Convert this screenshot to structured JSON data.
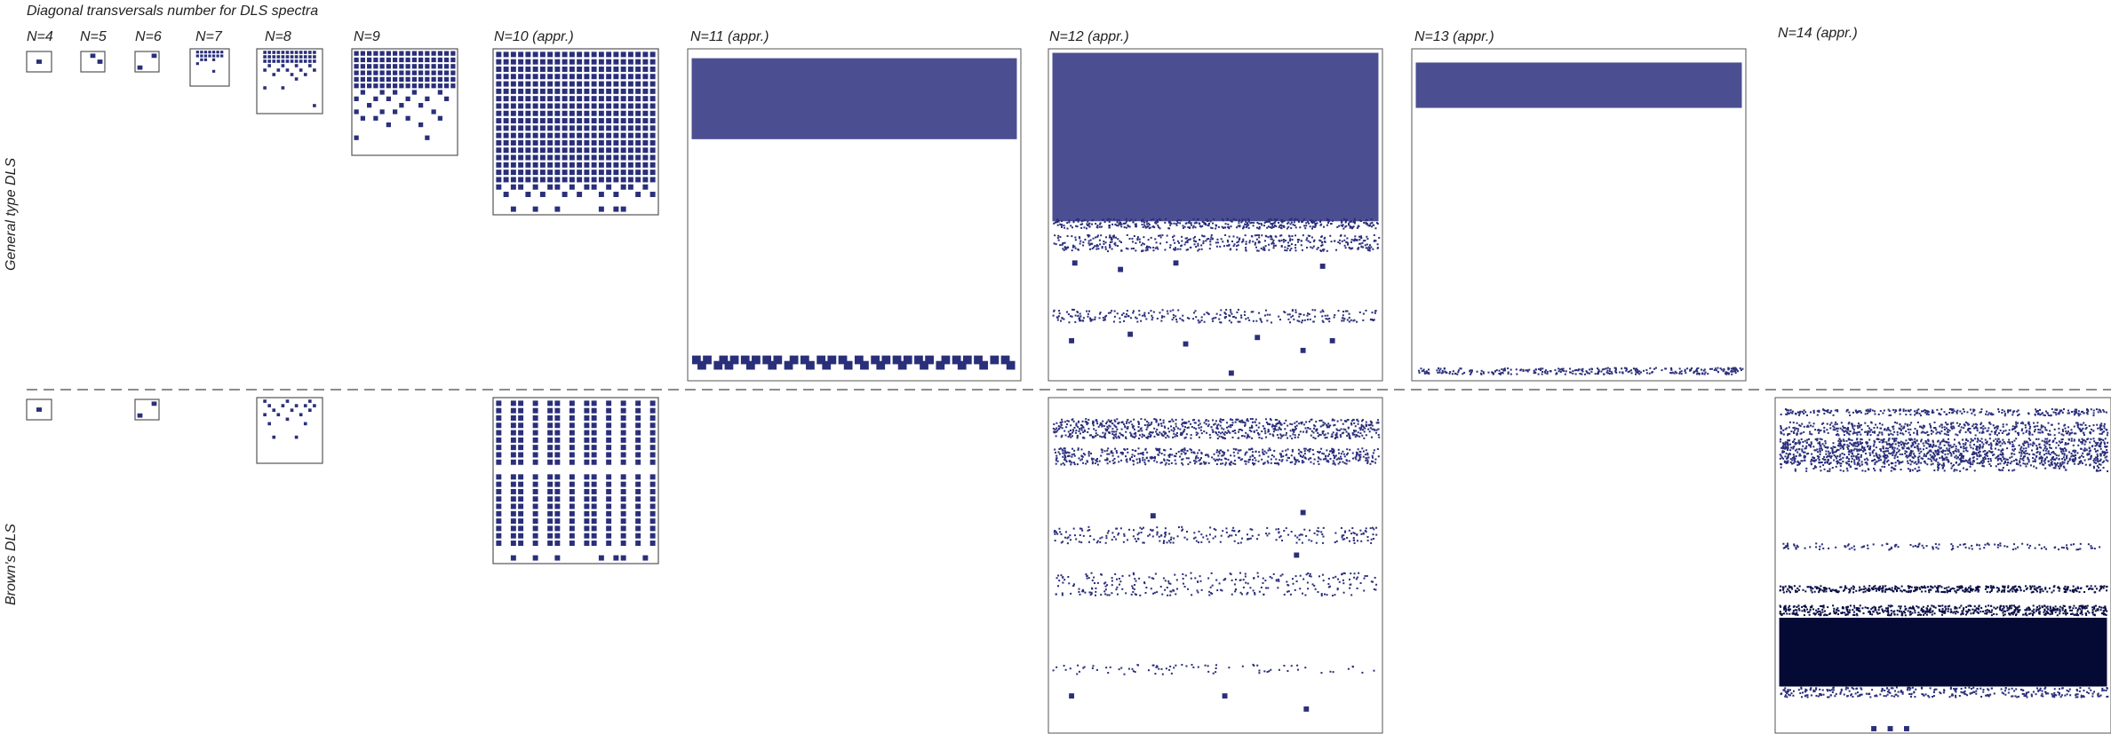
{
  "chart_data": {
    "type": "scatter",
    "title": "Diagonal transversals number for DLS spectra",
    "colors": {
      "point": "#2a2f7a",
      "dense_point": "#4b4f92",
      "frame": "#555555",
      "separator": "#666666"
    },
    "row_labels": [
      "General type DLS",
      "Brown's DLS"
    ],
    "column_labels": [
      "N=4",
      "N=5",
      "N=6",
      "N=7",
      "N=8",
      "N=9",
      "N=10 (appr.)",
      "N=11 (appr.)",
      "N=12 (appr.)",
      "N=13 (appr.)",
      "N=14 (appr.)"
    ],
    "panels": [
      {
        "row": "General type DLS",
        "column": "N=4",
        "grid": {
          "cols": 3,
          "rows": 3
        },
        "cells": [
          {
            "c": 1,
            "r": 1
          }
        ]
      },
      {
        "row": "General type DLS",
        "column": "N=5",
        "grid": {
          "cols": 3,
          "rows": 3
        },
        "cells": [
          {
            "c": 1,
            "r": 0
          },
          {
            "c": 2,
            "r": 1
          }
        ]
      },
      {
        "row": "General type DLS",
        "column": "N=6",
        "grid": {
          "cols": 3,
          "rows": 3
        },
        "cells": [
          {
            "c": 2,
            "r": 0
          },
          {
            "c": 0,
            "r": 2
          }
        ]
      },
      {
        "row": "General type DLS",
        "column": "N=7",
        "grid": {
          "cols": 9,
          "rows": 9
        },
        "cells": [
          {
            "c": 1,
            "r": 0
          },
          {
            "c": 2,
            "r": 0
          },
          {
            "c": 3,
            "r": 0
          },
          {
            "c": 4,
            "r": 0
          },
          {
            "c": 5,
            "r": 0
          },
          {
            "c": 6,
            "r": 0
          },
          {
            "c": 7,
            "r": 0
          },
          {
            "c": 1,
            "r": 1
          },
          {
            "c": 2,
            "r": 1
          },
          {
            "c": 3,
            "r": 1
          },
          {
            "c": 4,
            "r": 1
          },
          {
            "c": 5,
            "r": 1
          },
          {
            "c": 6,
            "r": 1
          },
          {
            "c": 7,
            "r": 1
          },
          {
            "c": 2,
            "r": 2
          },
          {
            "c": 3,
            "r": 2
          },
          {
            "c": 5,
            "r": 2
          },
          {
            "c": 1,
            "r": 3
          },
          {
            "c": 5,
            "r": 5
          }
        ]
      },
      {
        "row": "General type DLS",
        "column": "N=8",
        "grid": {
          "cols": 14,
          "rows": 14
        },
        "fill": {
          "cols": [
            1,
            12
          ],
          "rows": [
            0,
            2
          ]
        },
        "cells": [
          {
            "c": 2,
            "r": 3
          },
          {
            "c": 5,
            "r": 3
          },
          {
            "c": 8,
            "r": 3
          },
          {
            "c": 11,
            "r": 3
          },
          {
            "c": 1,
            "r": 4
          },
          {
            "c": 4,
            "r": 4
          },
          {
            "c": 6,
            "r": 4
          },
          {
            "c": 9,
            "r": 4
          },
          {
            "c": 12,
            "r": 4
          },
          {
            "c": 3,
            "r": 5
          },
          {
            "c": 7,
            "r": 5
          },
          {
            "c": 10,
            "r": 5
          },
          {
            "c": 8,
            "r": 6
          },
          {
            "c": 1,
            "r": 8
          },
          {
            "c": 5,
            "r": 8
          },
          {
            "c": 12,
            "r": 12
          }
        ]
      },
      {
        "row": "General type DLS",
        "column": "N=9",
        "grid": {
          "cols": 16,
          "rows": 16
        },
        "fill": {
          "cols": [
            0,
            15
          ],
          "rows": [
            0,
            5
          ]
        },
        "cells": [
          {
            "c": 1,
            "r": 6
          },
          {
            "c": 4,
            "r": 6
          },
          {
            "c": 6,
            "r": 6
          },
          {
            "c": 9,
            "r": 6
          },
          {
            "c": 13,
            "r": 6
          },
          {
            "c": 0,
            "r": 7
          },
          {
            "c": 3,
            "r": 7
          },
          {
            "c": 5,
            "r": 7
          },
          {
            "c": 8,
            "r": 7
          },
          {
            "c": 11,
            "r": 7
          },
          {
            "c": 14,
            "r": 7
          },
          {
            "c": 2,
            "r": 8
          },
          {
            "c": 7,
            "r": 8
          },
          {
            "c": 10,
            "r": 8
          },
          {
            "c": 0,
            "r": 9
          },
          {
            "c": 4,
            "r": 9
          },
          {
            "c": 6,
            "r": 9
          },
          {
            "c": 12,
            "r": 9
          },
          {
            "c": 1,
            "r": 10
          },
          {
            "c": 3,
            "r": 10
          },
          {
            "c": 8,
            "r": 10
          },
          {
            "c": 13,
            "r": 10
          },
          {
            "c": 5,
            "r": 11
          },
          {
            "c": 10,
            "r": 11
          },
          {
            "c": 0,
            "r": 13
          },
          {
            "c": 11,
            "r": 13
          }
        ]
      },
      {
        "row": "General type DLS",
        "column": "N=10 (appr.)",
        "grid": {
          "cols": 22,
          "rows": 22
        },
        "fill": {
          "cols": [
            0,
            21
          ],
          "rows": [
            0,
            17
          ]
        },
        "cells": [
          {
            "c": 0,
            "r": 18
          },
          {
            "c": 2,
            "r": 18
          },
          {
            "c": 3,
            "r": 18
          },
          {
            "c": 5,
            "r": 18
          },
          {
            "c": 7,
            "r": 18
          },
          {
            "c": 8,
            "r": 18
          },
          {
            "c": 10,
            "r": 18
          },
          {
            "c": 12,
            "r": 18
          },
          {
            "c": 13,
            "r": 18
          },
          {
            "c": 15,
            "r": 18
          },
          {
            "c": 17,
            "r": 18
          },
          {
            "c": 18,
            "r": 18
          },
          {
            "c": 20,
            "r": 18
          },
          {
            "c": 1,
            "r": 19
          },
          {
            "c": 4,
            "r": 19
          },
          {
            "c": 6,
            "r": 19
          },
          {
            "c": 9,
            "r": 19
          },
          {
            "c": 11,
            "r": 19
          },
          {
            "c": 14,
            "r": 19
          },
          {
            "c": 16,
            "r": 19
          },
          {
            "c": 19,
            "r": 19
          },
          {
            "c": 21,
            "r": 19
          },
          {
            "c": 2,
            "r": 21
          },
          {
            "c": 5,
            "r": 21
          },
          {
            "c": 8,
            "r": 21
          },
          {
            "c": 14,
            "r": 21
          },
          {
            "c": 16,
            "r": 21
          },
          {
            "c": 17,
            "r": 21
          }
        ]
      },
      {
        "row": "General type DLS",
        "column": "N=11 (appr.)",
        "grid": {
          "cols": 60,
          "rows": 60
        },
        "fill": {
          "cols": [
            0,
            59
          ],
          "rows": [
            1,
            15
          ]
        },
        "cells": [
          {
            "c": 0,
            "r": 56
          },
          {
            "c": 2,
            "r": 56
          },
          {
            "c": 5,
            "r": 56
          },
          {
            "c": 7,
            "r": 56
          },
          {
            "c": 9,
            "r": 56
          },
          {
            "c": 11,
            "r": 56
          },
          {
            "c": 13,
            "r": 56
          },
          {
            "c": 15,
            "r": 56
          },
          {
            "c": 18,
            "r": 56
          },
          {
            "c": 20,
            "r": 56
          },
          {
            "c": 23,
            "r": 56
          },
          {
            "c": 25,
            "r": 56
          },
          {
            "c": 27,
            "r": 56
          },
          {
            "c": 30,
            "r": 56
          },
          {
            "c": 33,
            "r": 56
          },
          {
            "c": 35,
            "r": 56
          },
          {
            "c": 37,
            "r": 56
          },
          {
            "c": 39,
            "r": 56
          },
          {
            "c": 41,
            "r": 56
          },
          {
            "c": 43,
            "r": 56
          },
          {
            "c": 46,
            "r": 56
          },
          {
            "c": 48,
            "r": 56
          },
          {
            "c": 50,
            "r": 56
          },
          {
            "c": 52,
            "r": 56
          },
          {
            "c": 55,
            "r": 56
          },
          {
            "c": 57,
            "r": 56
          },
          {
            "c": 1,
            "r": 57
          },
          {
            "c": 4,
            "r": 57
          },
          {
            "c": 6,
            "r": 57
          },
          {
            "c": 10,
            "r": 57
          },
          {
            "c": 14,
            "r": 57
          },
          {
            "c": 17,
            "r": 57
          },
          {
            "c": 21,
            "r": 57
          },
          {
            "c": 24,
            "r": 57
          },
          {
            "c": 28,
            "r": 57
          },
          {
            "c": 31,
            "r": 57
          },
          {
            "c": 34,
            "r": 57
          },
          {
            "c": 38,
            "r": 57
          },
          {
            "c": 42,
            "r": 57
          },
          {
            "c": 45,
            "r": 57
          },
          {
            "c": 49,
            "r": 57
          },
          {
            "c": 53,
            "r": 57
          },
          {
            "c": 58,
            "r": 57
          }
        ]
      },
      {
        "row": "General type DLS",
        "column": "N=12 (appr.)",
        "grid": {
          "cols": 100,
          "rows": 100
        },
        "fill": {
          "cols": [
            0,
            99
          ],
          "rows": [
            0,
            51
          ]
        },
        "bands": [
          {
            "rows": [
              51,
              53
            ],
            "density": 0.65
          },
          {
            "rows": [
              56,
              60
            ],
            "density": 0.4
          },
          {
            "rows": [
              79,
              82
            ],
            "density": 0.3
          }
        ],
        "cells": [
          {
            "c": 6,
            "r": 64
          },
          {
            "c": 20,
            "r": 66
          },
          {
            "c": 37,
            "r": 64
          },
          {
            "c": 82,
            "r": 65
          },
          {
            "c": 5,
            "r": 88
          },
          {
            "c": 23,
            "r": 86
          },
          {
            "c": 40,
            "r": 89
          },
          {
            "c": 62,
            "r": 87
          },
          {
            "c": 76,
            "r": 91
          },
          {
            "c": 85,
            "r": 88
          },
          {
            "c": 54,
            "r": 98
          }
        ]
      },
      {
        "row": "General type DLS",
        "column": "N=13 (appr.)",
        "grid": {
          "cols": 100,
          "rows": 100
        },
        "fill": {
          "cols": [
            0,
            99
          ],
          "rows": [
            3,
            16
          ]
        },
        "bands": [
          {
            "rows": [
              97,
              98
            ],
            "density": 0.7
          }
        ]
      },
      {
        "row": "Brown's DLS",
        "column": "N=4",
        "grid": {
          "cols": 3,
          "rows": 3
        },
        "cells": [
          {
            "c": 1,
            "r": 1
          }
        ]
      },
      {
        "row": "Brown's DLS",
        "column": "N=6",
        "grid": {
          "cols": 3,
          "rows": 3
        },
        "cells": [
          {
            "c": 2,
            "r": 0
          },
          {
            "c": 0,
            "r": 2
          }
        ]
      },
      {
        "row": "Brown's DLS",
        "column": "N=8",
        "grid": {
          "cols": 14,
          "rows": 14
        },
        "cells": [
          {
            "c": 1,
            "r": 0
          },
          {
            "c": 6,
            "r": 0
          },
          {
            "c": 11,
            "r": 0
          },
          {
            "c": 2,
            "r": 1
          },
          {
            "c": 5,
            "r": 1
          },
          {
            "c": 8,
            "r": 1
          },
          {
            "c": 10,
            "r": 1
          },
          {
            "c": 12,
            "r": 1
          },
          {
            "c": 3,
            "r": 2
          },
          {
            "c": 7,
            "r": 2
          },
          {
            "c": 11,
            "r": 2
          },
          {
            "c": 1,
            "r": 3
          },
          {
            "c": 4,
            "r": 3
          },
          {
            "c": 9,
            "r": 3
          },
          {
            "c": 6,
            "r": 4
          },
          {
            "c": 2,
            "r": 5
          },
          {
            "c": 10,
            "r": 5
          },
          {
            "c": 3,
            "r": 8
          },
          {
            "c": 8,
            "r": 8
          }
        ]
      },
      {
        "row": "Brown's DLS",
        "column": "N=10 (appr.)",
        "grid": {
          "cols": 22,
          "rows": 22
        },
        "columns_filled": [
          0,
          2,
          3,
          5,
          7,
          8,
          10,
          12,
          13,
          15,
          17,
          19,
          21
        ],
        "column_rows": [
          [
            0,
            8
          ],
          [
            10,
            19
          ]
        ],
        "cells": [
          {
            "c": 2,
            "r": 21
          },
          {
            "c": 5,
            "r": 21
          },
          {
            "c": 8,
            "r": 21
          },
          {
            "c": 14,
            "r": 21
          },
          {
            "c": 16,
            "r": 21
          },
          {
            "c": 17,
            "r": 21
          },
          {
            "c": 20,
            "r": 21
          }
        ]
      },
      {
        "row": "Brown's DLS",
        "column": "N=12 (appr.)",
        "grid": {
          "cols": 100,
          "rows": 100
        },
        "bands": [
          {
            "rows": [
              5,
              10
            ],
            "density": 0.55
          },
          {
            "rows": [
              14,
              18
            ],
            "density": 0.5
          },
          {
            "rows": [
              38,
              42
            ],
            "density": 0.22
          },
          {
            "rows": [
              52,
              58
            ],
            "density": 0.18
          },
          {
            "rows": [
              80,
              82
            ],
            "density": 0.12
          }
        ],
        "cells": [
          {
            "c": 30,
            "r": 34
          },
          {
            "c": 76,
            "r": 33
          },
          {
            "c": 5,
            "r": 89
          },
          {
            "c": 52,
            "r": 89
          },
          {
            "c": 77,
            "r": 93
          },
          {
            "c": 74,
            "r": 46
          }
        ]
      },
      {
        "row": "Brown's DLS",
        "column": "N=14 (appr.)",
        "grid": {
          "cols": 100,
          "rows": 100
        },
        "fill": {
          "cols": [
            0,
            99
          ],
          "rows": [
            66,
            86
          ]
        },
        "bands": [
          {
            "rows": [
              2,
              3
            ],
            "density": 0.6
          },
          {
            "rows": [
              6,
              9
            ],
            "density": 0.55
          },
          {
            "rows": [
              11,
              18
            ],
            "density": 0.75
          },
          {
            "rows": [
              19,
              20
            ],
            "density": 0.3
          },
          {
            "rows": [
              43,
              44
            ],
            "density": 0.3
          },
          {
            "rows": [
              56,
              57
            ],
            "density": 0.95
          },
          {
            "rows": [
              62,
              64
            ],
            "density": 0.9
          },
          {
            "rows": [
              87,
              89
            ],
            "density": 0.5
          }
        ],
        "cells": [
          {
            "c": 28,
            "r": 99
          },
          {
            "c": 33,
            "r": 99
          },
          {
            "c": 38,
            "r": 99
          }
        ]
      }
    ]
  }
}
